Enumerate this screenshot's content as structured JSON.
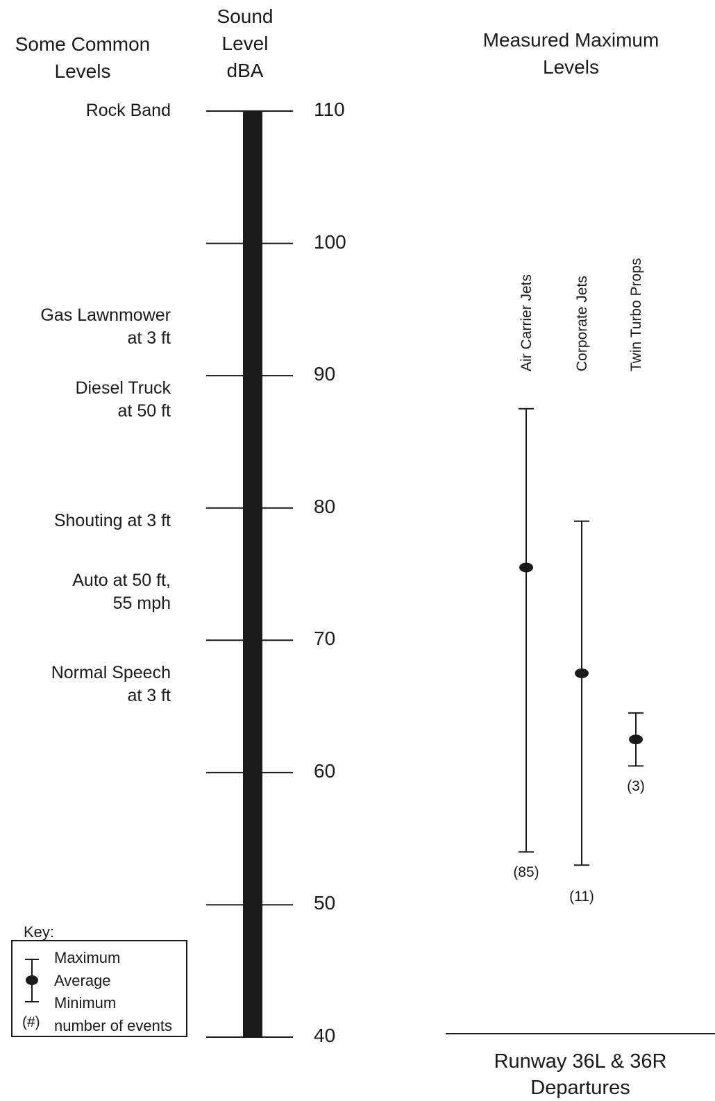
{
  "headers": {
    "left": [
      "Some Common",
      "Levels"
    ],
    "center": [
      "Sound",
      "Level",
      "dBA"
    ],
    "right": [
      "Measured Maximum",
      "Levels"
    ]
  },
  "common_levels": [
    {
      "lines": [
        "Rock Band"
      ],
      "value": 110
    },
    {
      "lines": [
        "Gas Lawnmower",
        "at 3 ft"
      ],
      "value": 94.5
    },
    {
      "lines": [
        "Diesel Truck",
        "at 50 ft"
      ],
      "value": 89
    },
    {
      "lines": [
        "Shouting at 3 ft"
      ],
      "value": 79
    },
    {
      "lines": [
        "Auto at 50 ft,",
        "55 mph"
      ],
      "value": 74.5
    },
    {
      "lines": [
        "Normal Speech",
        "at 3 ft"
      ],
      "value": 67.5
    }
  ],
  "key": {
    "title": "Key:",
    "maximum": "Maximum",
    "average": "Average",
    "minimum": "Minimum",
    "count_symbol": "(#)",
    "count_label": "number of events"
  },
  "footer": [
    "Runway 36L & 36R",
    "Departures"
  ],
  "chart_data": {
    "type": "range",
    "y_axis": {
      "label": [
        "Sound",
        "Level",
        "dBA"
      ],
      "range": [
        40,
        110
      ],
      "ticks": [
        40,
        50,
        60,
        70,
        80,
        90,
        100,
        110
      ]
    },
    "series": [
      {
        "name": "Air Carrier Jets",
        "max": 87.5,
        "avg": 75.5,
        "min": 54,
        "count": "(85)"
      },
      {
        "name": "Corporate Jets",
        "max": 79,
        "avg": 67.5,
        "min": 53,
        "count": "(11)"
      },
      {
        "name": "Twin Turbo Props",
        "max": 64.5,
        "avg": 62.5,
        "min": 60.5,
        "count": "(3)"
      }
    ],
    "x_label": [
      "Runway 36L & 36R",
      "Departures"
    ]
  }
}
